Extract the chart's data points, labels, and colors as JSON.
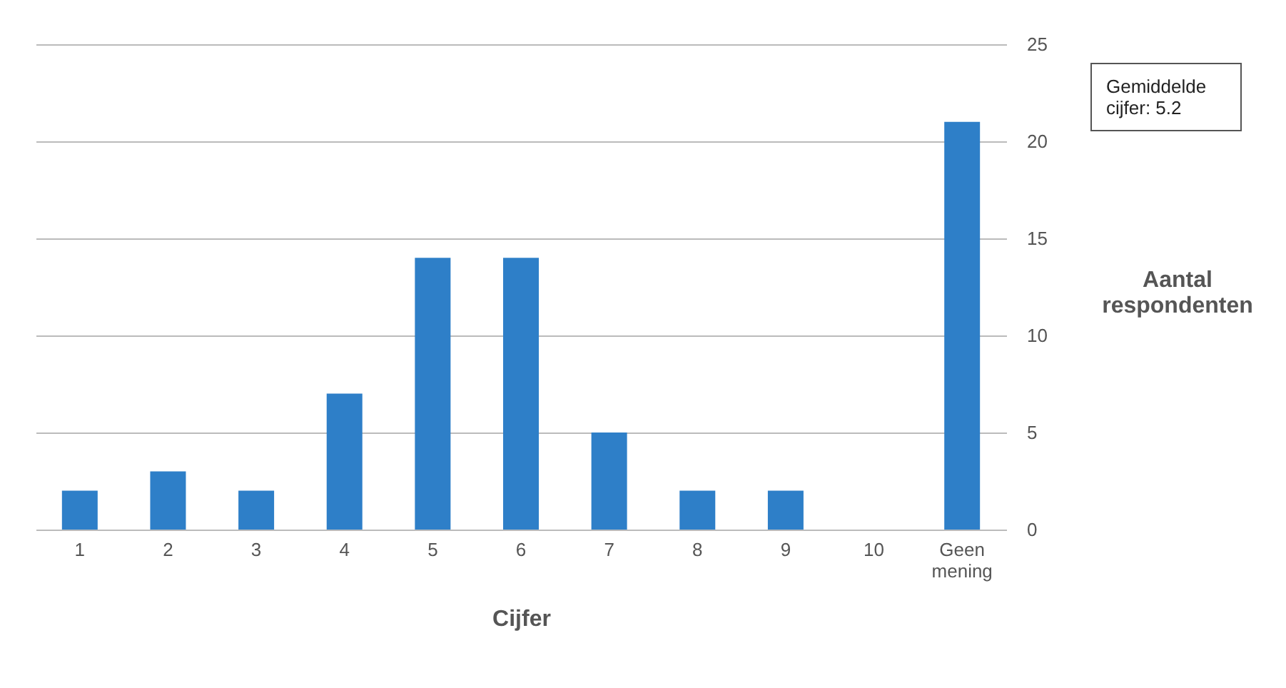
{
  "chart_data": {
    "type": "bar",
    "xlabel": "Cijfer",
    "ylabel": "Aantal respondenten",
    "categories": [
      "1",
      "2",
      "3",
      "4",
      "5",
      "6",
      "7",
      "8",
      "9",
      "10",
      "Geen mening"
    ],
    "values": [
      2,
      3,
      2,
      7,
      14,
      14,
      5,
      2,
      2,
      0,
      21
    ],
    "color": "#2e7fc8",
    "ylim": [
      0,
      25
    ],
    "yticks": [
      0,
      5,
      10,
      15,
      20,
      25
    ],
    "grid": "y",
    "annotations": [
      "Gemiddelde cijfer: 5.2"
    ]
  }
}
